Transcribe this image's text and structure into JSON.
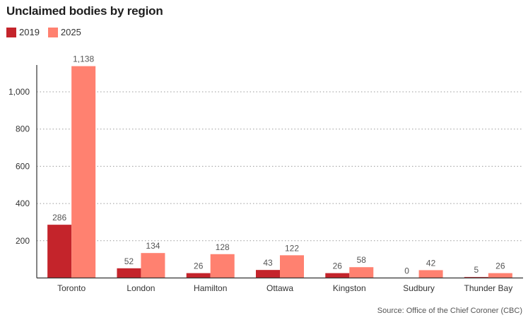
{
  "chart_data": {
    "type": "bar",
    "title": "Unclaimed bodies by region",
    "source": "Source: Office of the Chief Coroner (CBC)",
    "categories": [
      "Toronto",
      "London",
      "Hamilton",
      "Ottawa",
      "Kingston",
      "Sudbury",
      "Thunder Bay"
    ],
    "series": [
      {
        "name": "2019",
        "color": "#c4242b",
        "values": [
          286,
          52,
          26,
          43,
          26,
          0,
          5
        ],
        "labels": [
          "286",
          "52",
          "26",
          "43",
          "26",
          "0",
          "5"
        ]
      },
      {
        "name": "2025",
        "color": "#ff8170",
        "values": [
          1138,
          134,
          128,
          122,
          58,
          42,
          26
        ],
        "labels": [
          "1,138",
          "134",
          "128",
          "122",
          "58",
          "42",
          "26"
        ]
      }
    ],
    "yticks": [
      200,
      400,
      600,
      800,
      1000
    ],
    "ytick_labels": [
      "200",
      "400",
      "600",
      "800",
      "1,000"
    ],
    "ylim": [
      0,
      1150
    ],
    "grid": true,
    "legend_position": "top-left"
  }
}
